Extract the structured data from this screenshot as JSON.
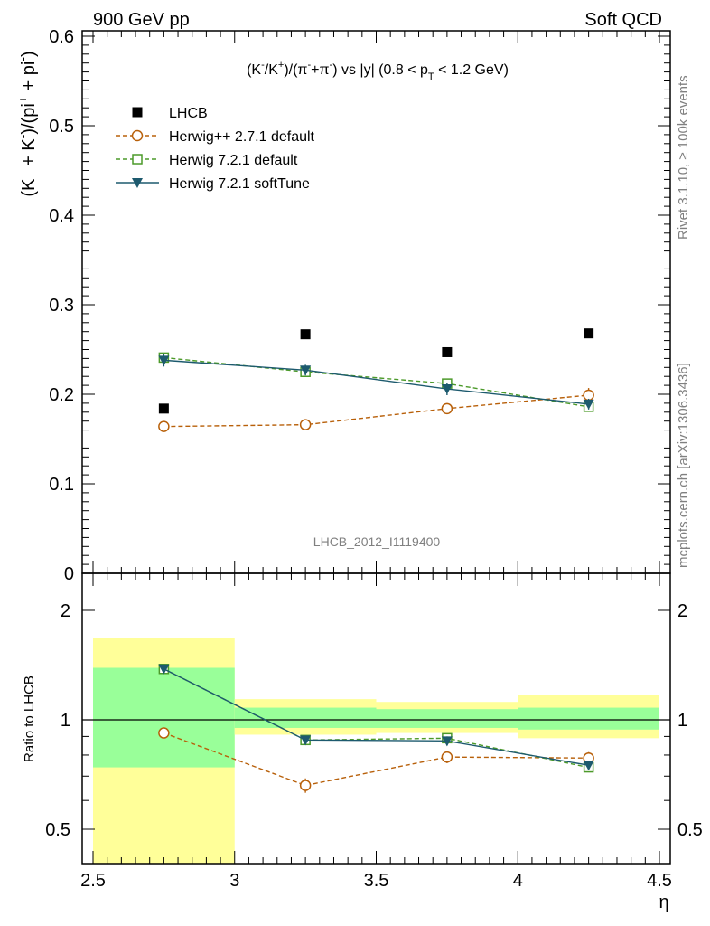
{
  "header": {
    "left": "900 GeV pp",
    "right": "Soft QCD"
  },
  "side_labels": {
    "rivet": "Rivet 3.1.10, ≥ 100k events",
    "mcplots": "mcplots.cern.ch [arXiv:1306.3436]"
  },
  "analysis_tag": "LHCB_2012_I1119400",
  "chart_data": [
    {
      "type": "scatter",
      "title": "(K⁻/K⁺)/(π⁻+π⁻) vs |y| (0.8 < pT < 1.2 GeV)",
      "xlabel": "η",
      "ylabel": "(K⁺ + K⁻)/(pi⁺ + pi⁻)",
      "xlim": [
        2.5,
        4.5
      ],
      "ylim": [
        0,
        0.6
      ],
      "yticks": [
        0,
        0.1,
        0.2,
        0.3,
        0.4,
        0.5,
        0.6
      ],
      "ytick_labels": [
        "0",
        "0.1",
        "0.2",
        "0.3",
        "0.4",
        "0.5",
        "0.6"
      ],
      "legend_position": "top-left",
      "x": [
        2.75,
        3.25,
        3.75,
        4.25
      ],
      "series": [
        {
          "name": "LHCB",
          "values": [
            0.184,
            0.267,
            0.247,
            0.268
          ],
          "errors": [
            0.003,
            0.003,
            0.003,
            0.003
          ],
          "color": "#000000",
          "marker": "filled-square",
          "line": "none"
        },
        {
          "name": "Herwig++ 2.7.1 default",
          "values": [
            0.164,
            0.166,
            0.184,
            0.199
          ],
          "errors": [
            0.005,
            0.006,
            0.006,
            0.008
          ],
          "color": "#b8600a",
          "marker": "open-circle",
          "line": "dashed"
        },
        {
          "name": "Herwig 7.2.1 default",
          "values": [
            0.241,
            0.225,
            0.212,
            0.186
          ],
          "errors": [
            0.005,
            0.005,
            0.005,
            0.005
          ],
          "color": "#4c9a2a",
          "marker": "open-square",
          "line": "dashed"
        },
        {
          "name": "Herwig 7.2.1 softTune",
          "values": [
            0.238,
            0.227,
            0.206,
            0.189
          ],
          "errors": [
            0.007,
            0.006,
            0.007,
            0.006
          ],
          "color": "#1d5a6e",
          "marker": "filled-triangle-down",
          "line": "solid"
        }
      ]
    },
    {
      "type": "scatter",
      "title": "",
      "xlabel": "η",
      "ylabel": "Ratio to LHCB",
      "xlim": [
        2.5,
        4.5
      ],
      "ylim": [
        0.35,
        2.35
      ],
      "yscale": "log",
      "xticks": [
        2.5,
        3,
        3.5,
        4,
        4.5
      ],
      "xtick_labels": [
        "2.5",
        "3",
        "3.5",
        "4",
        "4.5"
      ],
      "yticks": [
        0.5,
        1,
        2
      ],
      "ytick_labels": [
        "0.5",
        "1",
        "2"
      ],
      "x": [
        2.75,
        3.25,
        3.75,
        4.25
      ],
      "uncertainty_bands": [
        {
          "x_low": 2.5,
          "x_high": 3.0,
          "inner": [
            0.74,
            1.39
          ],
          "outer": [
            0.35,
            1.68
          ]
        },
        {
          "x_low": 3.0,
          "x_high": 3.5,
          "inner": [
            0.95,
            1.08
          ],
          "outer": [
            0.91,
            1.14
          ]
        },
        {
          "x_low": 3.5,
          "x_high": 4.0,
          "inner": [
            0.95,
            1.07
          ],
          "outer": [
            0.92,
            1.12
          ]
        },
        {
          "x_low": 4.0,
          "x_high": 4.5,
          "inner": [
            0.94,
            1.08
          ],
          "outer": [
            0.89,
            1.17
          ]
        }
      ],
      "band_colors": {
        "inner": "#99ff99",
        "outer": "#ffff99"
      },
      "series": [
        {
          "name": "Herwig++ 2.7.1 default",
          "values": [
            0.92,
            0.66,
            0.79,
            0.785
          ],
          "errors": [
            0.03,
            0.03,
            0.03,
            0.03
          ],
          "color": "#b8600a",
          "marker": "open-circle",
          "line": "dashed"
        },
        {
          "name": "Herwig 7.2.1 default",
          "values": [
            1.38,
            0.88,
            0.89,
            0.74
          ],
          "errors": [
            0.02,
            0.02,
            0.02,
            0.02
          ],
          "color": "#4c9a2a",
          "marker": "open-square",
          "line": "dashed"
        },
        {
          "name": "Herwig 7.2.1 softTune",
          "values": [
            1.38,
            0.88,
            0.875,
            0.75
          ],
          "errors": [
            0.025,
            0.02,
            0.025,
            0.02
          ],
          "color": "#1d5a6e",
          "marker": "filled-triangle-down",
          "line": "solid"
        }
      ]
    }
  ]
}
